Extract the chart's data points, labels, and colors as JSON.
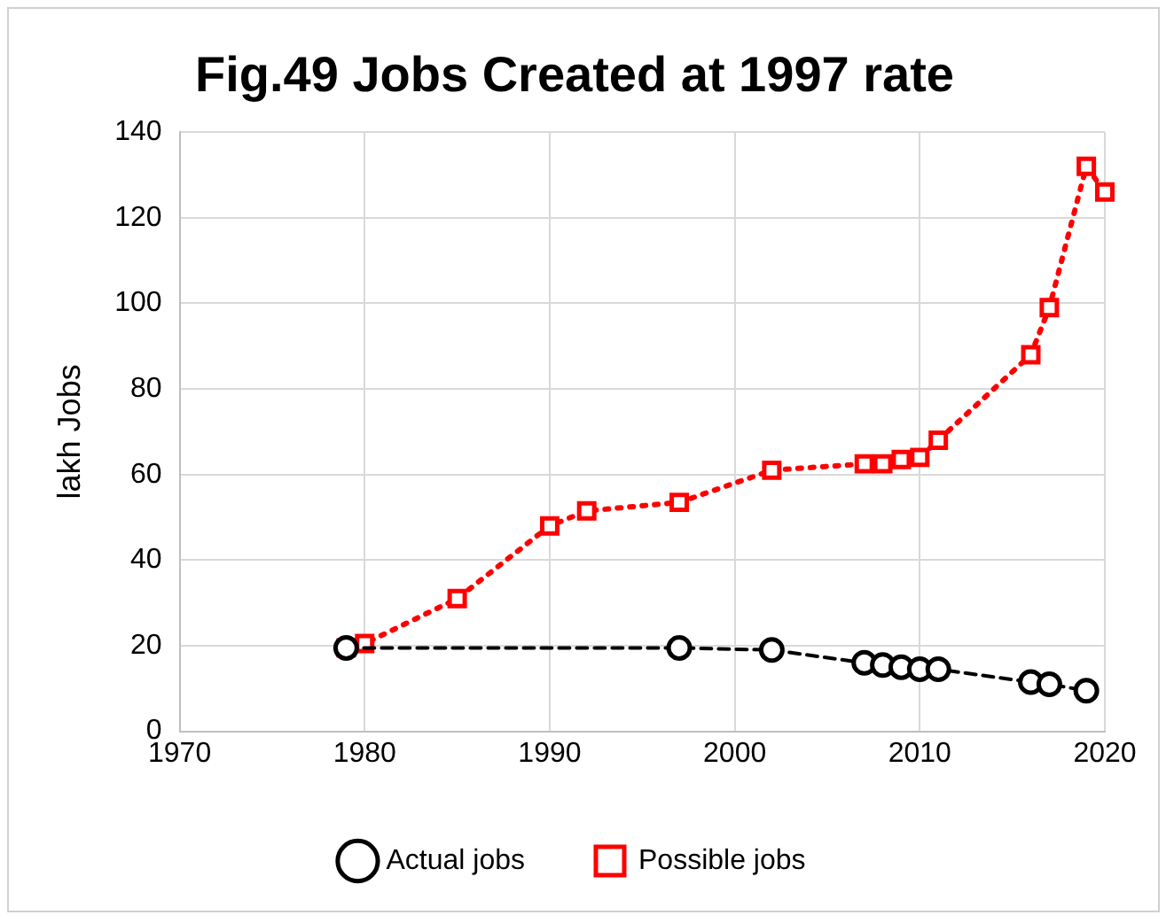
{
  "chart_data": {
    "type": "line",
    "title": "Fig.49 Jobs Created at 1997 rate",
    "ylabel": "lakh Jobs",
    "xlim": [
      1970,
      2020
    ],
    "xticks": [
      1970,
      1980,
      1990,
      2000,
      2010,
      2020
    ],
    "ylim": [
      0,
      140
    ],
    "yticks": [
      0,
      20,
      40,
      60,
      80,
      100,
      120,
      140
    ],
    "grid": true,
    "legend": "bottom",
    "series": [
      {
        "name": "Actual jobs",
        "color": "#000000",
        "marker": "circle",
        "line_style": "dashed",
        "x": [
          1979,
          1997,
          2002,
          2007,
          2008,
          2009,
          2010,
          2011,
          2016,
          2017,
          2019
        ],
        "values": [
          19.5,
          19.5,
          19,
          16,
          15.5,
          15,
          14.5,
          14.5,
          11.5,
          11,
          9.5
        ]
      },
      {
        "name": "Possible jobs",
        "color": "#ff0000",
        "marker": "square",
        "line_style": "dotted",
        "x": [
          1979,
          1980,
          1985,
          1990,
          1992,
          1997,
          2002,
          2007,
          2008,
          2009,
          2010,
          2011,
          2016,
          2017,
          2019,
          2020
        ],
        "values": [
          19.5,
          20.5,
          31,
          48,
          51.5,
          53.5,
          61,
          62.5,
          62.5,
          63.5,
          64,
          68,
          88,
          99,
          132,
          126
        ]
      }
    ]
  }
}
